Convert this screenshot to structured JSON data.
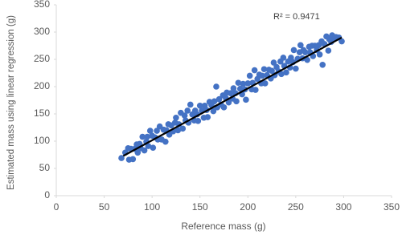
{
  "chart_data": {
    "type": "scatter",
    "x_label": "Reference mass (g)",
    "y_label": "Estimated mass using linear regression (g)",
    "annotation": "R² = 0.9471",
    "color": "#4472c4",
    "xlim": [
      0,
      350
    ],
    "xticks": [
      0,
      50,
      100,
      150,
      200,
      250,
      300,
      350
    ],
    "ylim": [
      0,
      350
    ],
    "yticks": [
      0,
      50,
      100,
      150,
      200,
      250,
      300,
      350
    ],
    "grid": false,
    "x": [
      68,
      72,
      75,
      76,
      78,
      80,
      82,
      84,
      85,
      87,
      88,
      90,
      92,
      94,
      95,
      96,
      98,
      100,
      101,
      103,
      105,
      106,
      108,
      110,
      112,
      114,
      115,
      117,
      118,
      120,
      122,
      124,
      125,
      127,
      128,
      130,
      132,
      134,
      135,
      137,
      138,
      140,
      142,
      144,
      145,
      147,
      148,
      150,
      152,
      154,
      155,
      157,
      158,
      160,
      162,
      164,
      165,
      167,
      168,
      170,
      172,
      174,
      175,
      177,
      178,
      180,
      182,
      184,
      185,
      187,
      188,
      190,
      192,
      194,
      195,
      197,
      198,
      200,
      202,
      204,
      205,
      207,
      208,
      210,
      212,
      214,
      215,
      217,
      218,
      220,
      222,
      224,
      225,
      227,
      228,
      230,
      232,
      234,
      235,
      237,
      238,
      240,
      242,
      244,
      245,
      247,
      248,
      250,
      252,
      254,
      255,
      257,
      258,
      260,
      262,
      264,
      265,
      267,
      268,
      270,
      272,
      274,
      275,
      277,
      278,
      280,
      282,
      284,
      285,
      287,
      288,
      290,
      292,
      295,
      298
    ],
    "values": [
      69,
      79,
      87,
      66,
      86,
      67,
      86,
      94,
      79,
      95,
      87,
      108,
      83,
      99,
      108,
      91,
      119,
      110,
      88,
      107,
      119,
      103,
      127,
      103,
      121,
      99,
      120,
      131,
      112,
      129,
      118,
      134,
      143,
      120,
      131,
      152,
      123,
      147,
      138,
      156,
      134,
      167,
      149,
      138,
      156,
      149,
      137,
      165,
      156,
      143,
      165,
      157,
      144,
      172,
      166,
      155,
      173,
      200,
      162,
      177,
      167,
      184,
      162,
      179,
      189,
      171,
      188,
      178,
      197,
      188,
      173,
      207,
      196,
      186,
      205,
      195,
      176,
      206,
      220,
      195,
      207,
      230,
      194,
      214,
      222,
      206,
      220,
      232,
      206,
      221,
      231,
      215,
      229,
      244,
      221,
      236,
      228,
      246,
      223,
      253,
      238,
      226,
      246,
      235,
      253,
      245,
      267,
      233,
      251,
      263,
      276,
      252,
      267,
      263,
      249,
      273,
      263,
      275,
      256,
      275,
      267,
      276,
      259,
      283,
      240,
      278,
      292,
      266,
      287,
      282,
      294,
      287,
      291,
      290,
      283
    ],
    "trendline": {
      "x": [
        70,
        298
      ],
      "y": [
        73,
        290
      ],
      "color": "#000000"
    }
  }
}
